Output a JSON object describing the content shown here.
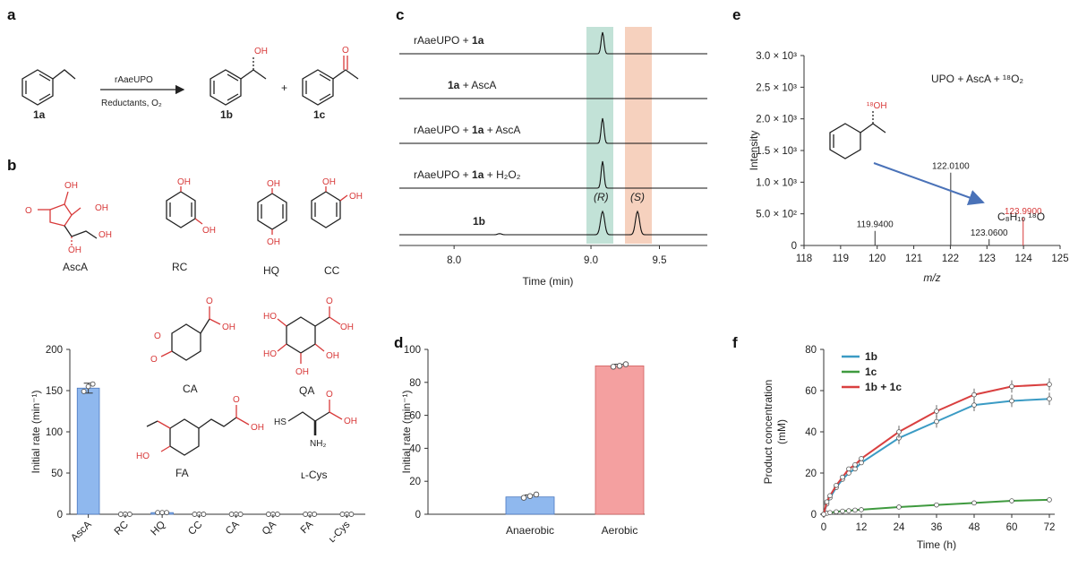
{
  "panels": {
    "a": "a",
    "b": "b",
    "c": "c",
    "d": "d",
    "e": "e",
    "f": "f"
  },
  "scheme_a": {
    "enzyme": "rAaeUPO",
    "conditions": "Reductants, O₂",
    "substrate": "1a",
    "product1": "1b",
    "product2": "1c",
    "plus": "+",
    "oh": "OH",
    "o": "O"
  },
  "reductants": {
    "ascA": "AscA",
    "rc": "RC",
    "hq": "HQ",
    "cc": "CC",
    "ca": "CA",
    "qa": "QA",
    "fa": "FA",
    "lcys": "ʟ-Cys",
    "oh": "OH",
    "ho": "HO",
    "o": "O",
    "hs": "HS",
    "nh2": "NH₂"
  },
  "chart_data": [
    {
      "id": "b",
      "type": "bar",
      "categories": [
        "AscA",
        "RC",
        "HQ",
        "CC",
        "CA",
        "QA",
        "FA",
        "ʟ-Cys"
      ],
      "values": [
        153,
        0,
        2,
        0,
        0,
        0,
        0,
        0
      ],
      "errors": [
        6,
        0,
        0,
        0,
        0,
        0,
        0,
        0
      ],
      "points": [
        [
          149,
          155,
          158
        ],
        [
          0,
          0,
          0
        ],
        [
          2,
          2,
          2
        ],
        [
          0,
          0,
          0
        ],
        [
          0,
          0,
          0
        ],
        [
          0,
          0,
          0
        ],
        [
          0,
          0,
          0
        ],
        [
          0,
          0,
          0
        ]
      ],
      "ylabel": "Initial rate (min⁻¹)",
      "ylim": [
        0,
        200
      ],
      "yticks": [
        0,
        50,
        100,
        150,
        200
      ],
      "color": "#8fb8ee"
    },
    {
      "id": "c",
      "type": "line",
      "xlabel": "Time (min)",
      "xticks": [
        "8.0",
        "9.0",
        "9.5"
      ],
      "xlim": [
        7.6,
        9.85
      ],
      "traces": [
        {
          "label_pre": "rAaeUPO + ",
          "label_bold": "1a",
          "label_post": ""
        },
        {
          "label_pre": "",
          "label_bold": "1a",
          "label_post": " + AscA"
        },
        {
          "label_pre": "rAaeUPO + ",
          "label_bold": "1a",
          "label_post": " + AscA"
        },
        {
          "label_pre": "rAaeUPO + ",
          "label_bold": "1a",
          "label_post": " + H₂O₂"
        },
        {
          "label_pre": "",
          "label_bold": "1b",
          "label_post": ""
        }
      ],
      "annotations": [
        "(R)",
        "(S)"
      ],
      "highlight_colors": [
        "#b7ddd0",
        "#f4c9b3"
      ]
    },
    {
      "id": "d",
      "type": "bar",
      "categories": [
        "Anaerobic",
        "Aerobic"
      ],
      "values": [
        10.5,
        90
      ],
      "errors": [
        1.2,
        1
      ],
      "points": [
        [
          10,
          11,
          12
        ],
        [
          89.5,
          90,
          91
        ]
      ],
      "ylabel": "Initial rate (min⁻¹)",
      "ylim": [
        0,
        100
      ],
      "yticks": [
        0,
        20,
        40,
        60,
        80,
        100
      ],
      "colors": [
        "#8fb8ee",
        "#f4a0a0"
      ]
    },
    {
      "id": "e",
      "type": "bar",
      "title": "UPO + AscA + ¹⁸O₂",
      "xlabel": "m/z",
      "ylabel": "Intensity",
      "xlim": [
        118,
        125
      ],
      "xticks": [
        118,
        119,
        120,
        121,
        122,
        123,
        124,
        125
      ],
      "ylim": [
        0,
        3000
      ],
      "yticks": [
        "0",
        "5.0 × 10²",
        "1.0 × 10³",
        "1.5 × 10³",
        "2.0 × 10³",
        "2.5 × 10³",
        "3.0 × 10³"
      ],
      "peaks": [
        {
          "mz": 119.94,
          "intensity": 230,
          "label": "119.9400",
          "red": false
        },
        {
          "mz": 122.01,
          "intensity": 1150,
          "label": "122.0100",
          "red": false
        },
        {
          "mz": 123.06,
          "intensity": 100,
          "label": "123.0600",
          "red": false
        },
        {
          "mz": 123.99,
          "intensity": 440,
          "label": "123.9900",
          "red": true
        }
      ],
      "molecule_label": "¹⁸OH",
      "formula": "C₈H₁₀ ¹⁸O"
    },
    {
      "id": "f",
      "type": "line",
      "xlabel": "Time (h)",
      "ylabel": "Product concentration (mM)",
      "x": [
        0,
        1,
        2,
        4,
        6,
        8,
        10,
        12,
        24,
        36,
        48,
        60,
        72
      ],
      "xticks": [
        0,
        12,
        24,
        36,
        48,
        60,
        72
      ],
      "ylim": [
        0,
        80
      ],
      "yticks": [
        0,
        20,
        40,
        60,
        80
      ],
      "legend": "top-left",
      "series": [
        {
          "name": "1b",
          "color": "#3b9bc4",
          "values": [
            0,
            5,
            8,
            13,
            17,
            20,
            22,
            25,
            37,
            45,
            53,
            55,
            56
          ]
        },
        {
          "name": "1c",
          "color": "#3f9a3f",
          "values": [
            0,
            0.5,
            0.8,
            1.2,
            1.5,
            1.7,
            2,
            2.2,
            3.5,
            4.5,
            5.5,
            6.5,
            7
          ]
        },
        {
          "name": "1b + 1c",
          "color": "#d94040",
          "values": [
            0,
            6,
            9,
            14,
            18,
            22,
            24,
            27,
            40,
            50,
            58,
            62,
            63
          ]
        }
      ]
    }
  ]
}
